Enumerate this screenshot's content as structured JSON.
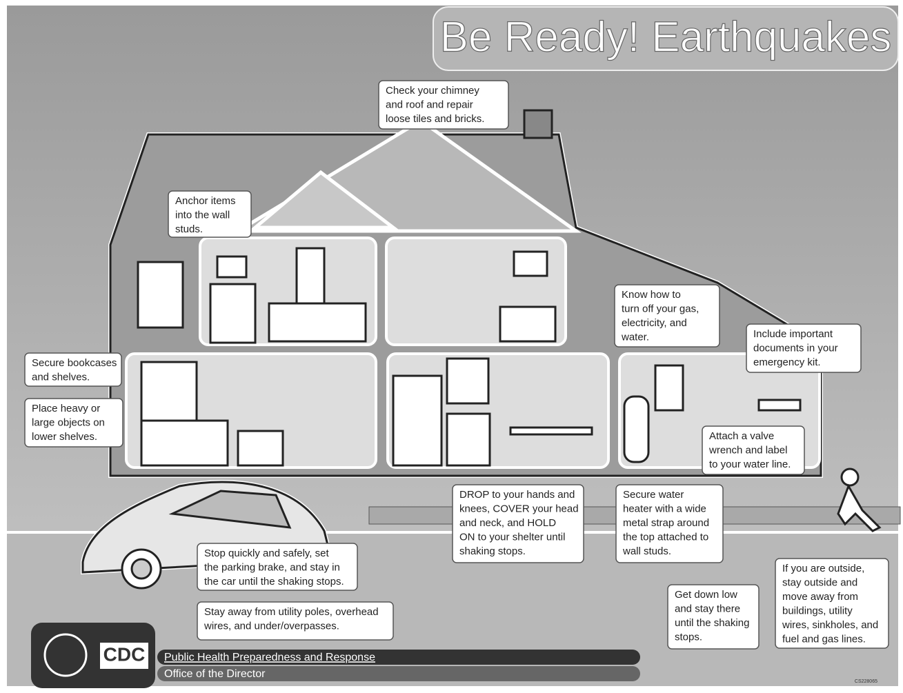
{
  "header": {
    "title": "Be Ready! Earthquakes"
  },
  "callouts": [
    {
      "lines": [
        "Check your chimney",
        "and roof and repair",
        "loose tiles and bricks."
      ]
    },
    {
      "lines": [
        "Anchor items",
        "into the wall",
        "studs."
      ]
    },
    {
      "lines": [
        "Secure bookcases",
        "and shelves."
      ]
    },
    {
      "lines": [
        "Place heavy or",
        "large objects on",
        "lower shelves."
      ]
    },
    {
      "lines": [
        "Know how to",
        "turn off your gas,",
        "electricity, and",
        "water."
      ]
    },
    {
      "lines": [
        "Include important",
        "documents in your",
        "emergency kit."
      ]
    },
    {
      "lines": [
        "Attach a valve",
        "wrench and label",
        "to your water line."
      ]
    },
    {
      "lines": [
        "DROP to your hands and",
        "knees, COVER your head",
        "and neck, and HOLD",
        "ON to your shelter until",
        "shaking stops."
      ]
    },
    {
      "lines": [
        "Secure water",
        "heater with a wide",
        "metal strap around",
        "the top attached to",
        "wall studs."
      ]
    },
    {
      "lines": [
        "Stop quickly and safely, set",
        "the parking brake, and stay in",
        "the car until the shaking stops."
      ]
    },
    {
      "lines": [
        "Stay away from utility poles, overhead",
        "wires, and under/overpasses."
      ]
    },
    {
      "lines": [
        "Get down low",
        "and stay there",
        "until the shaking",
        "stops."
      ]
    },
    {
      "lines": [
        "If you are outside,",
        "stay outside and",
        "move away from",
        "buildings, utility",
        "wires, sinkholes, and",
        "fuel and gas lines."
      ]
    }
  ],
  "footer": {
    "logo": "CDC",
    "line1": "Public Health Preparedness and Response",
    "line2": "Office of the Director",
    "code": "CS228065"
  }
}
